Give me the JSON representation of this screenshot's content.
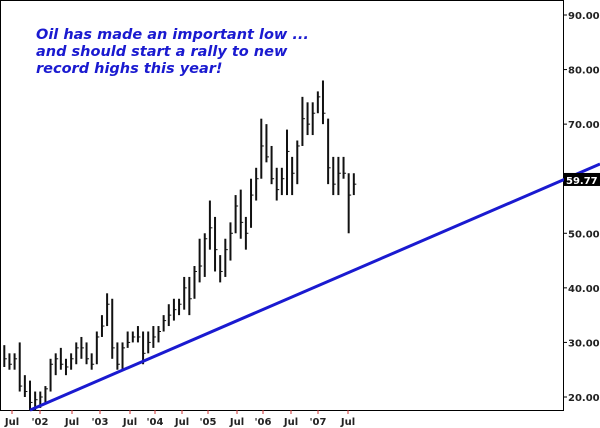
{
  "chart_data": {
    "type": "ohlc-bar",
    "annotation": [
      "Oil has made an important low ...",
      "and should start a rally to new",
      "record highs this year!"
    ],
    "x_tick_labels": [
      "Jul",
      "'02",
      "Jul",
      "'03",
      "Jul",
      "'04",
      "Jul",
      "'05",
      "Jul",
      "'06",
      "Jul",
      "'07",
      "Jul"
    ],
    "y_tick_labels": [
      "90.00",
      "80.00",
      "70.00",
      "50.00",
      "40.00",
      "30.00",
      "20.00"
    ],
    "ylim": [
      20,
      90
    ],
    "last_price_label": "59.77",
    "start_month": "2001-06",
    "frequency": "monthly",
    "high": [
      29.5,
      28,
      28,
      30,
      24,
      23,
      21,
      21,
      22,
      27,
      28,
      29,
      27,
      28,
      30,
      31,
      30,
      28,
      32,
      35,
      39,
      38,
      30,
      30,
      32,
      32,
      33,
      32,
      32,
      33,
      33,
      35,
      37,
      38,
      38,
      42,
      42,
      44,
      49,
      50,
      56,
      53,
      46,
      49,
      52,
      57,
      58,
      53,
      60,
      62,
      71,
      70,
      66,
      62,
      62,
      69,
      64,
      67,
      75,
      74,
      74,
      76,
      78,
      71,
      64,
      64,
      64,
      61,
      61
    ],
    "low": [
      25.5,
      25,
      25,
      21,
      20,
      17.5,
      17.5,
      18,
      19,
      21,
      24,
      25,
      24,
      25,
      26,
      27,
      26,
      25,
      26,
      31,
      33,
      27,
      25,
      25,
      29,
      30,
      30,
      26,
      28,
      29,
      30,
      32,
      33,
      34,
      35,
      36,
      35,
      38,
      41,
      42,
      47,
      43,
      41,
      42,
      45,
      50,
      49,
      47,
      51,
      56,
      60,
      63,
      59,
      56,
      57,
      57,
      57,
      59,
      66,
      68,
      68,
      72,
      70,
      59,
      57,
      57,
      60,
      50,
      57
    ],
    "close": [
      27,
      26,
      27,
      22,
      21,
      19,
      19.5,
      20,
      21.5,
      26,
      27,
      26,
      25.5,
      27,
      29,
      29,
      27,
      26,
      31,
      33,
      37,
      29,
      26,
      29,
      30,
      31,
      31,
      28,
      30,
      31,
      32,
      34,
      35,
      36,
      37,
      40,
      38,
      43,
      44,
      49,
      51,
      47,
      43,
      47,
      50,
      55,
      52,
      50,
      57,
      60,
      66,
      64,
      60,
      58,
      60,
      65,
      61,
      66,
      71,
      70,
      72,
      75,
      72,
      62,
      59,
      61,
      61,
      57,
      59
    ],
    "trendline": {
      "points": [
        {
          "month": "2001-11",
          "value": 17.6
        },
        {
          "month": "2010-06",
          "value": 59.77
        }
      ],
      "color": "#1a1ad0"
    },
    "bar_color": "#111111",
    "annotation_color": "#1a1ad0",
    "grid": false
  }
}
